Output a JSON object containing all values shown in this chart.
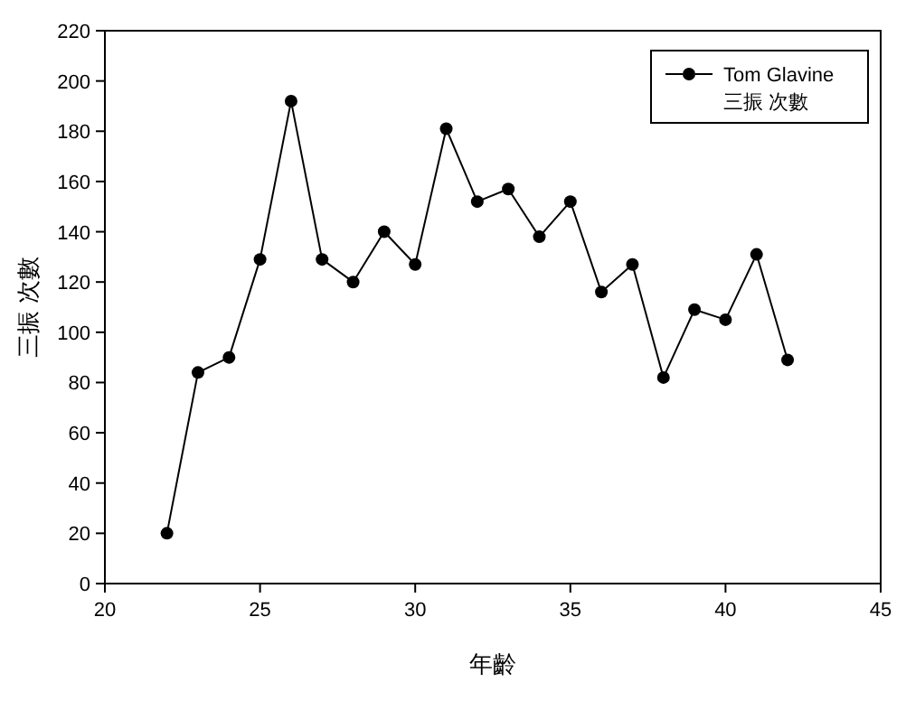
{
  "chart_data": {
    "type": "line",
    "xlabel": "年齡",
    "ylabel": "三振 次數",
    "legend": "top right",
    "marker": "circle",
    "line_style": "solid",
    "grid": false,
    "x": [
      22,
      23,
      24,
      25,
      26,
      27,
      28,
      29,
      30,
      31,
      32,
      33,
      34,
      35,
      36,
      37,
      38,
      39,
      40,
      41,
      42
    ],
    "series": [
      {
        "name": "Tom Glavine 三振 次數",
        "color": "#000000",
        "values": [
          20,
          84,
          90,
          129,
          192,
          129,
          120,
          140,
          127,
          181,
          152,
          157,
          138,
          152,
          116,
          127,
          82,
          109,
          105,
          131,
          89
        ]
      }
    ],
    "xlim": [
      20,
      45
    ],
    "xticks": [
      20,
      25,
      30,
      35,
      40,
      45
    ],
    "ylim": [
      0,
      220
    ],
    "yticks": [
      0,
      20,
      40,
      60,
      80,
      100,
      120,
      140,
      160,
      180,
      200,
      220
    ]
  }
}
